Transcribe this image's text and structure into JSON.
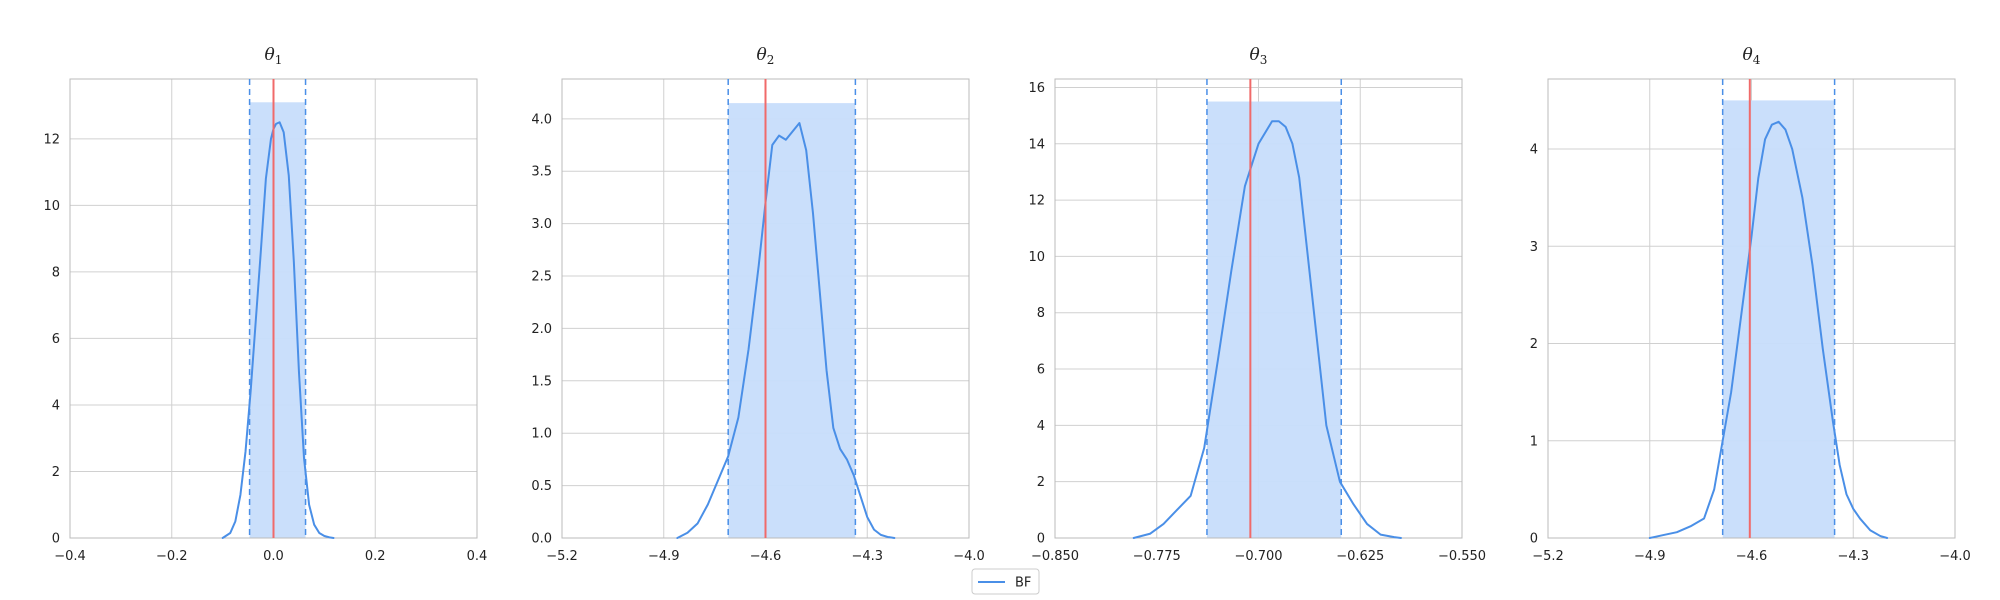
{
  "colors": {
    "kde": "#4a8fe7",
    "ci_fill": "#c7ddfb",
    "ci_line": "#4a8fe7",
    "true_value": "#f06a6a",
    "grid": "#d0d0d0",
    "axis": "#bbbbbb"
  },
  "legend": {
    "label": "BF",
    "placement": "bottom-center"
  },
  "chart_data": [
    {
      "type": "line",
      "title_symbol": "θ",
      "title_subscript": "1",
      "xlim": [
        -0.4,
        0.4
      ],
      "ylim": [
        0,
        13.8
      ],
      "xticks": [
        -0.4,
        -0.2,
        0.0,
        0.2,
        0.4
      ],
      "xtick_labels": [
        "−0.4",
        "−0.2",
        "0.0",
        "0.2",
        "0.4"
      ],
      "yticks": [
        0,
        2,
        4,
        6,
        8,
        10,
        12
      ],
      "ytick_labels": [
        "0",
        "2",
        "4",
        "6",
        "8",
        "10",
        "12"
      ],
      "grid": true,
      "ci": [
        -0.047,
        0.063
      ],
      "ci_top": 13.1,
      "true_value": 0.0,
      "series": [
        {
          "name": "BF",
          "x": [
            -0.1,
            -0.085,
            -0.075,
            -0.065,
            -0.055,
            -0.045,
            -0.035,
            -0.025,
            -0.015,
            -0.005,
            0.0,
            0.005,
            0.012,
            0.02,
            0.03,
            0.04,
            0.05,
            0.06,
            0.07,
            0.08,
            0.09,
            0.1,
            0.11,
            0.118
          ],
          "y": [
            0,
            0.15,
            0.5,
            1.3,
            2.6,
            4.4,
            6.5,
            8.6,
            10.8,
            12.0,
            12.3,
            12.45,
            12.5,
            12.2,
            10.9,
            8.3,
            5.0,
            2.4,
            1.0,
            0.4,
            0.15,
            0.06,
            0.02,
            0
          ]
        }
      ]
    },
    {
      "type": "line",
      "title_symbol": "θ",
      "title_subscript": "2",
      "xlim": [
        -5.2,
        -4.0
      ],
      "ylim": [
        0,
        4.38
      ],
      "xticks": [
        -5.2,
        -4.9,
        -4.6,
        -4.3,
        -4.0
      ],
      "xtick_labels": [
        "−5.2",
        "−4.9",
        "−4.6",
        "−4.3",
        "−4.0"
      ],
      "yticks": [
        0,
        0.5,
        1.0,
        1.5,
        2.0,
        2.5,
        3.0,
        3.5,
        4.0
      ],
      "ytick_labels": [
        "0.0",
        "0.5",
        "1.0",
        "1.5",
        "2.0",
        "2.5",
        "3.0",
        "3.5",
        "4.0"
      ],
      "grid": true,
      "ci": [
        -4.71,
        -4.335
      ],
      "ci_top": 4.15,
      "true_value": -4.6,
      "series": [
        {
          "name": "BF",
          "x": [
            -4.86,
            -4.83,
            -4.8,
            -4.77,
            -4.74,
            -4.71,
            -4.68,
            -4.65,
            -4.62,
            -4.6,
            -4.58,
            -4.56,
            -4.54,
            -4.52,
            -4.5,
            -4.48,
            -4.46,
            -4.44,
            -4.42,
            -4.4,
            -4.38,
            -4.36,
            -4.34,
            -4.32,
            -4.3,
            -4.28,
            -4.26,
            -4.24,
            -4.22
          ],
          "y": [
            0,
            0.05,
            0.14,
            0.32,
            0.55,
            0.78,
            1.15,
            1.8,
            2.6,
            3.2,
            3.75,
            3.84,
            3.8,
            3.88,
            3.96,
            3.7,
            3.1,
            2.35,
            1.6,
            1.05,
            0.85,
            0.75,
            0.6,
            0.4,
            0.2,
            0.08,
            0.03,
            0.01,
            0
          ]
        }
      ]
    },
    {
      "type": "line",
      "title_symbol": "θ",
      "title_subscript": "3",
      "xlim": [
        -0.85,
        -0.55
      ],
      "ylim": [
        0,
        16.3
      ],
      "xticks": [
        -0.85,
        -0.775,
        -0.7,
        -0.625,
        -0.55
      ],
      "xtick_labels": [
        "−0.850",
        "−0.775",
        "−0.700",
        "−0.625",
        "−0.550"
      ],
      "yticks": [
        0,
        2,
        4,
        6,
        8,
        10,
        12,
        14,
        16
      ],
      "ytick_labels": [
        "0",
        "2",
        "4",
        "6",
        "8",
        "10",
        "12",
        "14",
        "16"
      ],
      "grid": true,
      "ci": [
        -0.738,
        -0.639
      ],
      "ci_top": 15.5,
      "true_value": -0.706,
      "series": [
        {
          "name": "BF",
          "x": [
            -0.792,
            -0.78,
            -0.77,
            -0.76,
            -0.75,
            -0.74,
            -0.73,
            -0.72,
            -0.71,
            -0.7,
            -0.69,
            -0.685,
            -0.68,
            -0.675,
            -0.67,
            -0.66,
            -0.65,
            -0.64,
            -0.63,
            -0.62,
            -0.61,
            -0.6,
            -0.595
          ],
          "y": [
            0,
            0.15,
            0.5,
            1.0,
            1.5,
            3.2,
            6.3,
            9.5,
            12.5,
            14.0,
            14.8,
            14.8,
            14.6,
            14.0,
            12.8,
            8.4,
            4.0,
            2.0,
            1.2,
            0.5,
            0.12,
            0.03,
            0
          ]
        }
      ]
    },
    {
      "type": "line",
      "title_symbol": "θ",
      "title_subscript": "4",
      "xlim": [
        -5.2,
        -4.0
      ],
      "ylim": [
        0,
        4.72
      ],
      "xticks": [
        -5.2,
        -4.9,
        -4.6,
        -4.3,
        -4.0
      ],
      "xtick_labels": [
        "−5.2",
        "−4.9",
        "−4.6",
        "−4.3",
        "−4.0"
      ],
      "yticks": [
        0,
        1,
        2,
        3,
        4
      ],
      "ytick_labels": [
        "0",
        "1",
        "2",
        "3",
        "4"
      ],
      "grid": true,
      "ci": [
        -4.685,
        -4.355
      ],
      "ci_top": 4.5,
      "true_value": -4.605,
      "series": [
        {
          "name": "BF",
          "x": [
            -4.9,
            -4.86,
            -4.82,
            -4.78,
            -4.74,
            -4.71,
            -4.685,
            -4.66,
            -4.63,
            -4.6,
            -4.58,
            -4.56,
            -4.54,
            -4.52,
            -4.5,
            -4.48,
            -4.45,
            -4.42,
            -4.39,
            -4.36,
            -4.34,
            -4.32,
            -4.3,
            -4.28,
            -4.25,
            -4.22,
            -4.2
          ],
          "y": [
            0,
            0.03,
            0.06,
            0.12,
            0.2,
            0.5,
            1.0,
            1.5,
            2.3,
            3.1,
            3.7,
            4.1,
            4.25,
            4.28,
            4.2,
            4.0,
            3.5,
            2.8,
            1.95,
            1.2,
            0.75,
            0.45,
            0.3,
            0.2,
            0.08,
            0.02,
            0
          ]
        }
      ]
    }
  ]
}
